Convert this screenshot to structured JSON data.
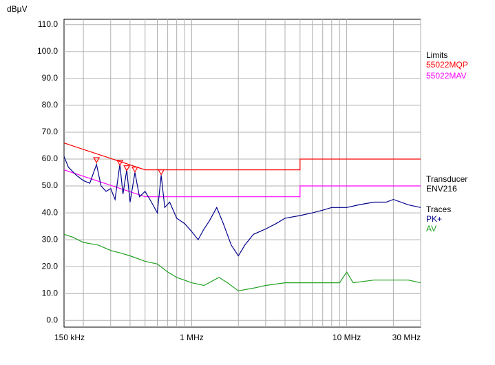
{
  "chart_data": {
    "type": "line",
    "ylabel": "dBµV",
    "xscale": "log",
    "xlim": [
      0.15,
      30
    ],
    "ylim": [
      -2.5,
      112
    ],
    "xticks": [
      {
        "value": 0.15,
        "label": "150 kHz"
      },
      {
        "value": 1,
        "label": "1 MHz"
      },
      {
        "value": 10,
        "label": "10 MHz"
      },
      {
        "value": 30,
        "label": "30 MHz"
      }
    ],
    "xgrid": [
      0.2,
      0.3,
      0.4,
      0.5,
      0.6,
      0.7,
      0.8,
      0.9,
      1,
      2,
      3,
      4,
      5,
      6,
      7,
      8,
      9,
      10,
      20,
      30
    ],
    "yticks": [
      {
        "value": 0,
        "label": "0.0"
      },
      {
        "value": 10,
        "label": "10.0"
      },
      {
        "value": 20,
        "label": "20.0"
      },
      {
        "value": 30,
        "label": "30.0"
      },
      {
        "value": 40,
        "label": "40.0"
      },
      {
        "value": 50,
        "label": "50.0"
      },
      {
        "value": 60,
        "label": "60.0"
      },
      {
        "value": 70,
        "label": "70.0"
      },
      {
        "value": 80,
        "label": "80.0"
      },
      {
        "value": 90,
        "label": "90.0"
      },
      {
        "value": 100,
        "label": "100.0"
      },
      {
        "value": 110,
        "label": "110.0"
      }
    ],
    "grid": true,
    "limits": {
      "title": "Limits",
      "series": [
        {
          "name": "55022MQP",
          "color": "#ff0000",
          "x": [
            0.15,
            0.5,
            5,
            5,
            30
          ],
          "values": [
            66,
            56,
            56,
            60,
            60
          ]
        },
        {
          "name": "55022MAV",
          "color": "#ff00ff",
          "x": [
            0.15,
            0.5,
            5,
            5,
            30
          ],
          "values": [
            56,
            46,
            46,
            50,
            50
          ]
        }
      ]
    },
    "transducer": {
      "title": "Transducer",
      "name": "ENV216"
    },
    "traces": {
      "title": "Traces",
      "series": [
        {
          "name": "PK+",
          "color": "#00008b",
          "x": [
            0.15,
            0.16,
            0.18,
            0.2,
            0.22,
            0.243,
            0.26,
            0.28,
            0.3,
            0.32,
            0.344,
            0.36,
            0.381,
            0.4,
            0.43,
            0.46,
            0.5,
            0.55,
            0.6,
            0.635,
            0.67,
            0.72,
            0.8,
            0.9,
            1.0,
            1.1,
            1.2,
            1.3,
            1.45,
            1.6,
            1.8,
            2.0,
            2.2,
            2.5,
            3,
            3.5,
            4,
            5,
            6,
            7,
            8,
            10,
            12,
            15,
            18,
            20,
            25,
            30
          ],
          "values": [
            61,
            57,
            54,
            52,
            51,
            58,
            50,
            48,
            49,
            45,
            58,
            47,
            56,
            44,
            55,
            46,
            48,
            44,
            40,
            54,
            42,
            44,
            38,
            36,
            33,
            30,
            34,
            37,
            42,
            36,
            28,
            24,
            28,
            32,
            34,
            36,
            38,
            39,
            40,
            41,
            42,
            42,
            43,
            44,
            44,
            45,
            43,
            42
          ]
        },
        {
          "name": "AV",
          "color": "#1fa01f",
          "x": [
            0.15,
            0.17,
            0.2,
            0.25,
            0.3,
            0.35,
            0.4,
            0.5,
            0.6,
            0.7,
            0.8,
            1.0,
            1.2,
            1.5,
            1.7,
            2.0,
            2.5,
            3,
            4,
            5,
            7,
            9,
            10,
            11,
            15,
            20,
            25,
            30
          ],
          "values": [
            32,
            31,
            29,
            28,
            26,
            25,
            24,
            22,
            21,
            18,
            16,
            14,
            13,
            16,
            14,
            11,
            12,
            13,
            14,
            14,
            14,
            14,
            18,
            14,
            15,
            15,
            15,
            14
          ]
        }
      ]
    },
    "markers": {
      "color": "#ff0000",
      "x": [
        0.243,
        0.344,
        0.381,
        0.43,
        0.635
      ],
      "values": [
        59.5,
        58.5,
        56.5,
        56,
        55
      ]
    }
  }
}
